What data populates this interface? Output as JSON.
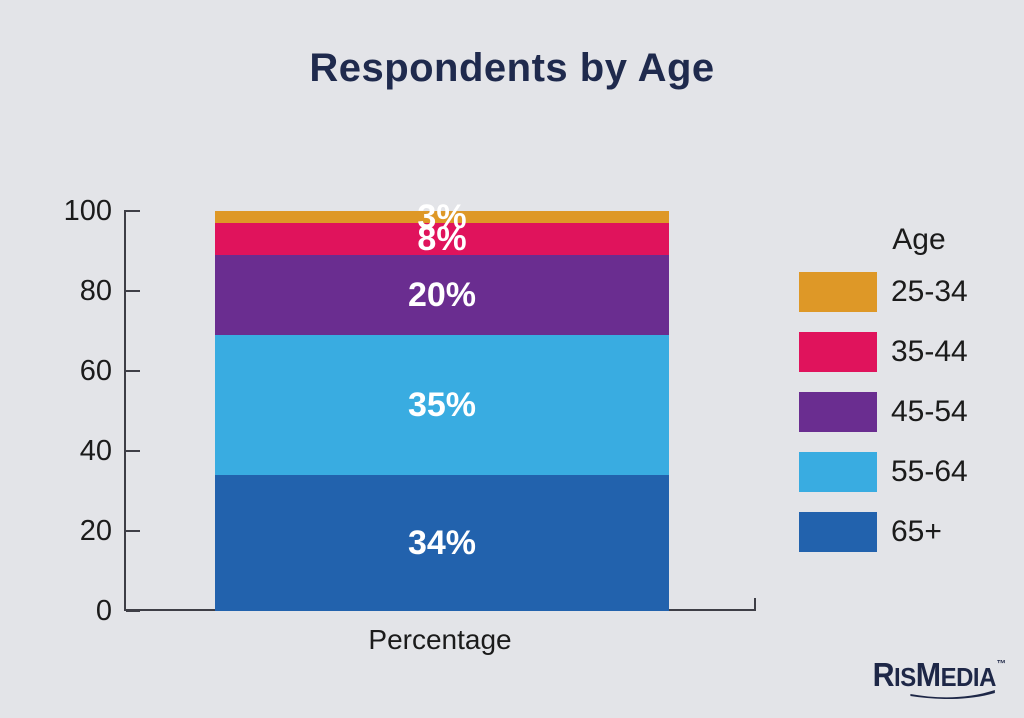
{
  "colors": {
    "background": "#E3E4E8",
    "title_text": "#1F2A4D",
    "axis_line": "#3E3E46",
    "tick_text": "#1B1B1B",
    "segment_label_text": "#FFFFFF",
    "logo": "#1E2747"
  },
  "chart_data": {
    "type": "bar",
    "stacked": true,
    "title": "Respondents by Age",
    "xlabel": "Percentage",
    "ylabel": "",
    "ylim": [
      0,
      100
    ],
    "yticks": [
      0,
      20,
      40,
      60,
      80,
      100
    ],
    "grid": false,
    "categories": [
      "Percentage"
    ],
    "series": [
      {
        "name": "25-34",
        "value": 3,
        "label": "3%",
        "color": "#DE9827"
      },
      {
        "name": "35-44",
        "value": 8,
        "label": "8%",
        "color": "#E0135C"
      },
      {
        "name": "45-54",
        "value": 20,
        "label": "20%",
        "color": "#6A2D90"
      },
      {
        "name": "55-64",
        "value": 35,
        "label": "35%",
        "color": "#39ACE1"
      },
      {
        "name": "65+",
        "value": 34,
        "label": "34%",
        "color": "#2262AD"
      }
    ],
    "legend": {
      "title": "Age",
      "position": "right",
      "items": [
        "25-34",
        "35-44",
        "45-54",
        "55-64",
        "65+"
      ]
    }
  },
  "branding": {
    "logo_parts": [
      "R",
      "IS",
      "M",
      "EDIA"
    ],
    "trademark": "™"
  }
}
